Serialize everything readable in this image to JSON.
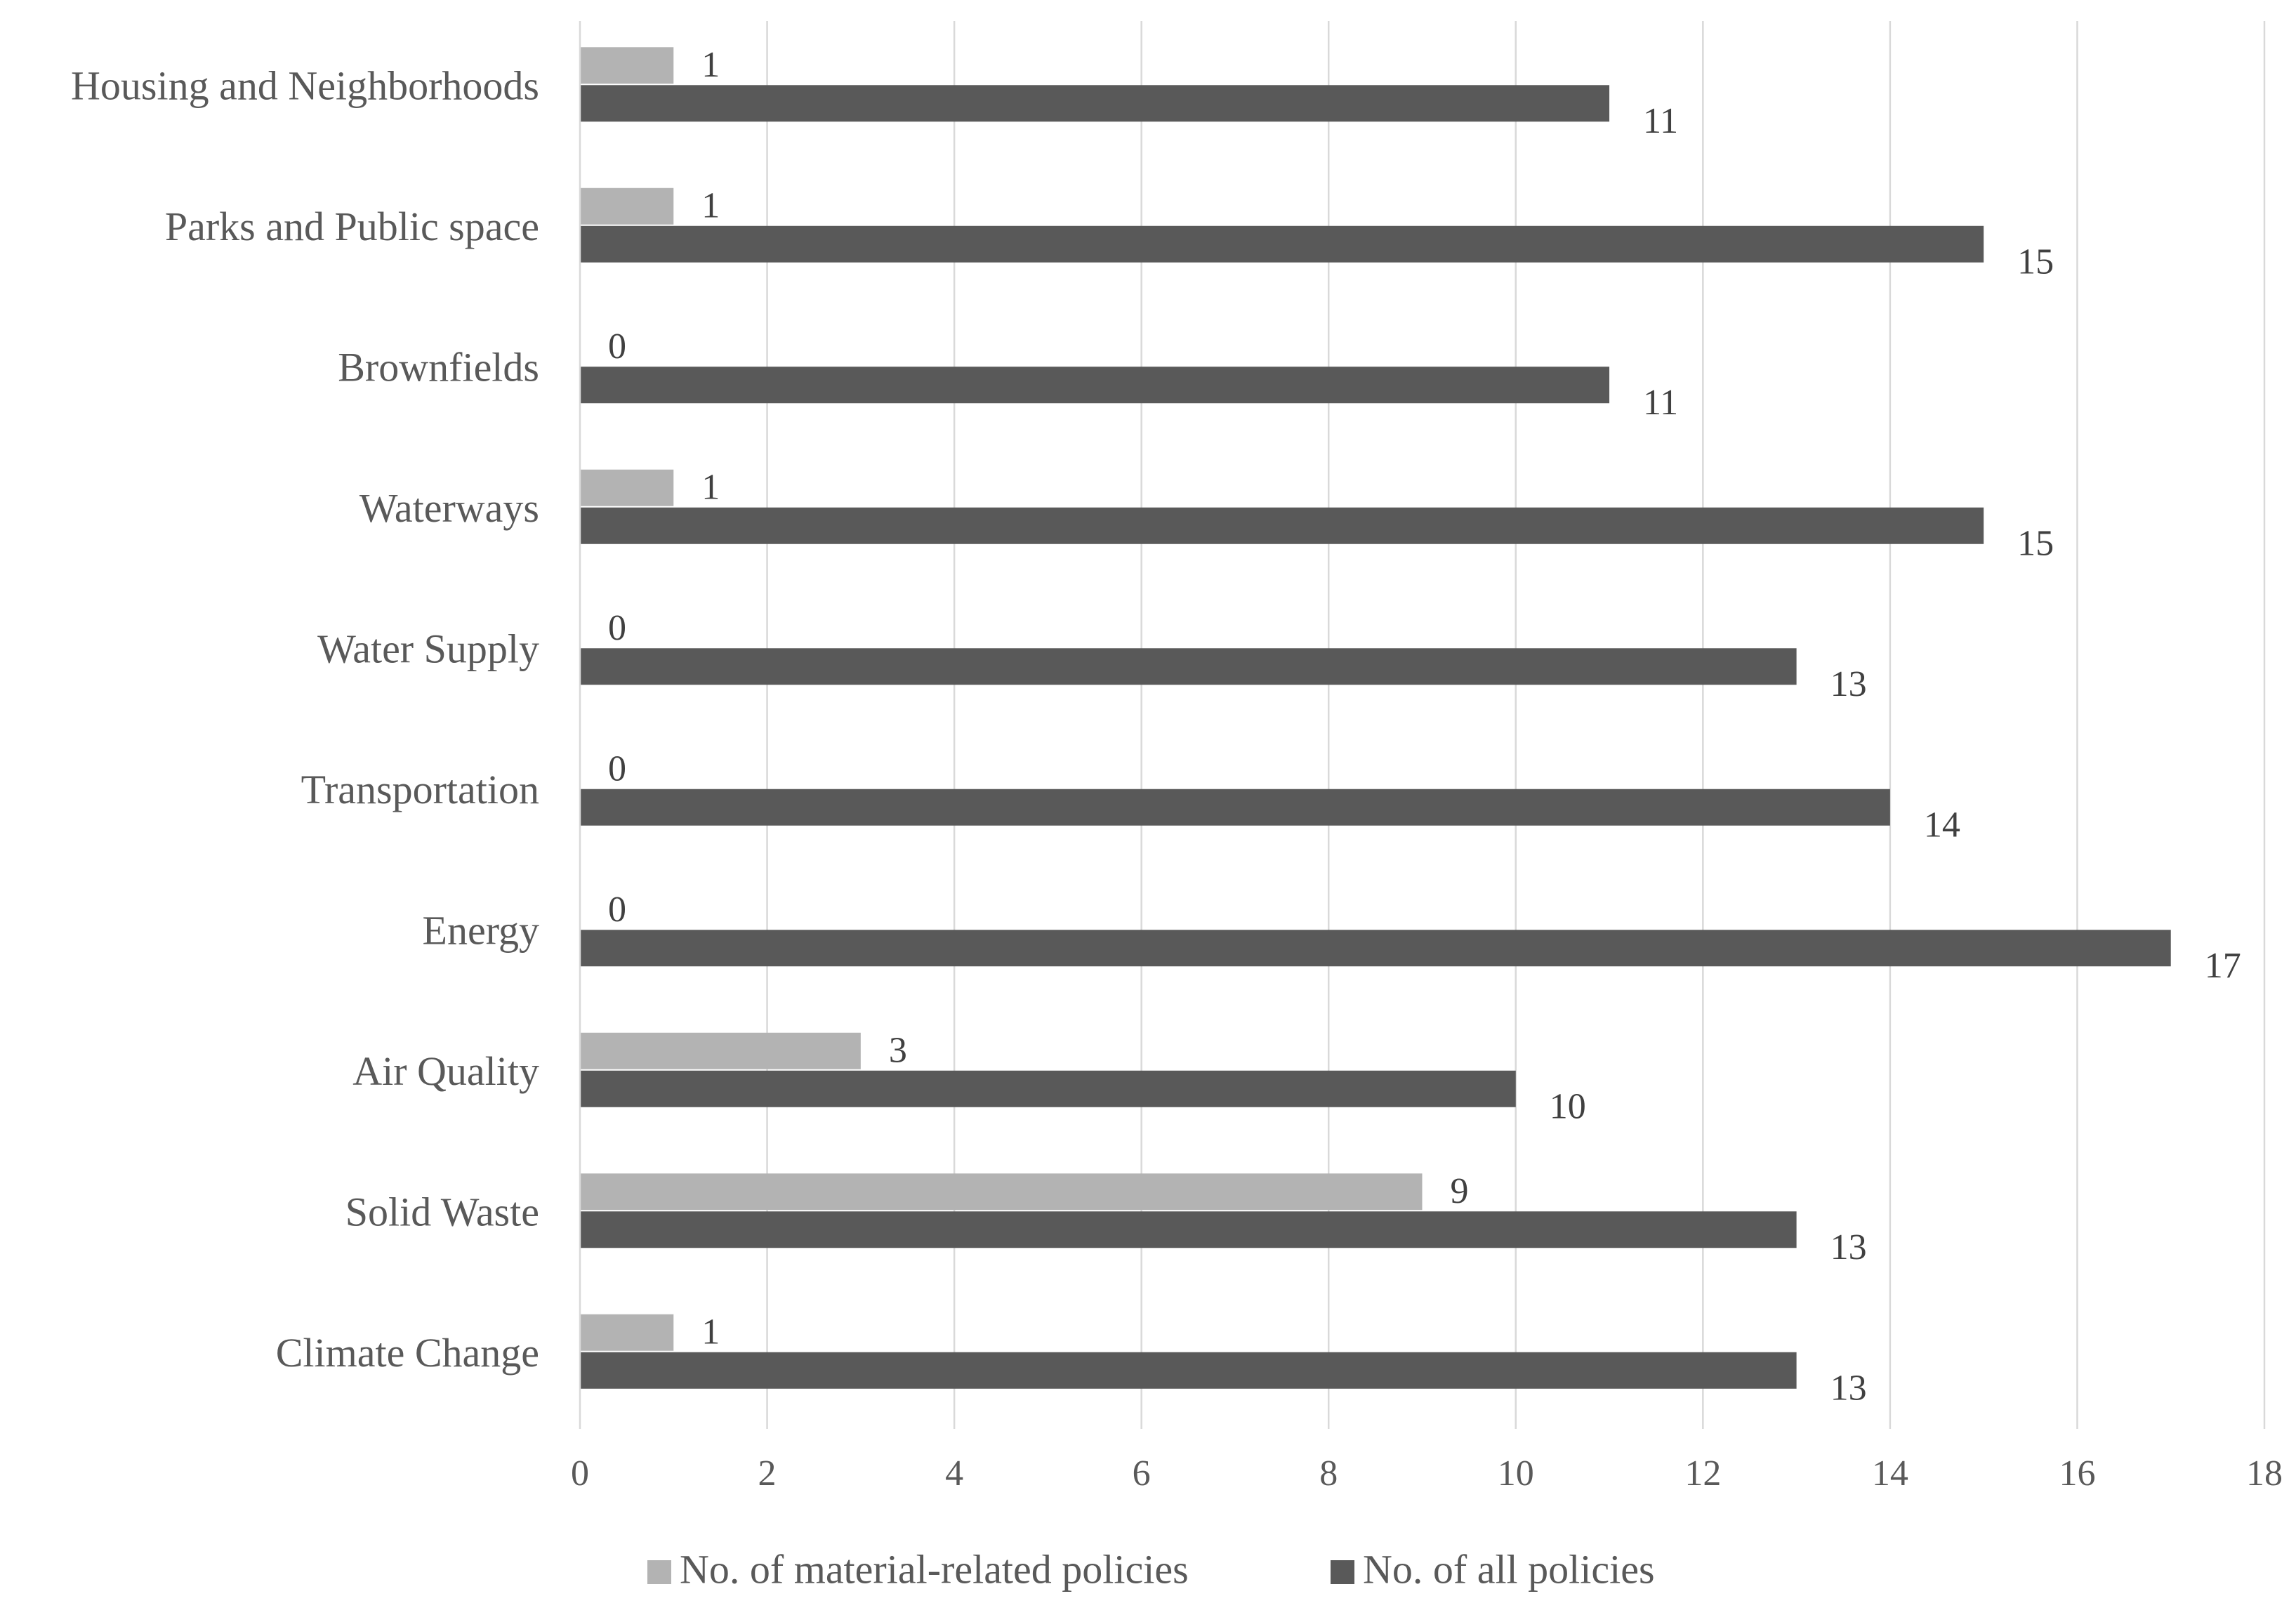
{
  "chart_data": {
    "type": "bar",
    "orientation": "horizontal",
    "title": "",
    "xlabel": "",
    "ylabel": "",
    "xlim": [
      0,
      18
    ],
    "x_ticks": [
      0,
      2,
      4,
      6,
      8,
      10,
      12,
      14,
      16,
      18
    ],
    "grid": "vertical",
    "legend_position": "bottom",
    "categories": [
      "Housing and Neighborhoods",
      "Parks and Public space",
      "Brownfields",
      "Waterways",
      "Water Supply",
      "Transportation",
      "Energy",
      "Air Quality",
      "Solid Waste",
      "Climate Change"
    ],
    "series": [
      {
        "name": "No. of material-related policies",
        "color": "#b3b3b3",
        "values": [
          1,
          1,
          0,
          1,
          0,
          0,
          0,
          3,
          9,
          1
        ]
      },
      {
        "name": "No. of all policies",
        "color": "#595959",
        "values": [
          11,
          15,
          11,
          15,
          13,
          14,
          17,
          10,
          13,
          13
        ]
      }
    ]
  }
}
